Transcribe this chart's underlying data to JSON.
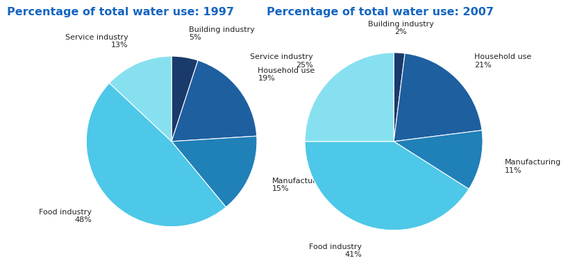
{
  "title1": "Percentage of total water use: 1997",
  "title2": "Percentage of total water use: 2007",
  "title_color": "#1565C0",
  "title_fontsize": 11.5,
  "labels": [
    "Building industry",
    "Household use",
    "Manufacturing",
    "Food industry",
    "Service industry"
  ],
  "values_1997": [
    5,
    19,
    15,
    48,
    13
  ],
  "values_2007": [
    2,
    21,
    11,
    41,
    25
  ],
  "colors_1997": [
    "#1a3a6b",
    "#1e5fa0",
    "#2080b8",
    "#4dc8e8",
    "#87e0f0"
  ],
  "colors_2007": [
    "#1a3a6b",
    "#1e5fa0",
    "#2080b8",
    "#4dc8e8",
    "#87e0f0"
  ],
  "label_fontsize": 8,
  "label_color": "#222222",
  "background_color": "#ffffff"
}
